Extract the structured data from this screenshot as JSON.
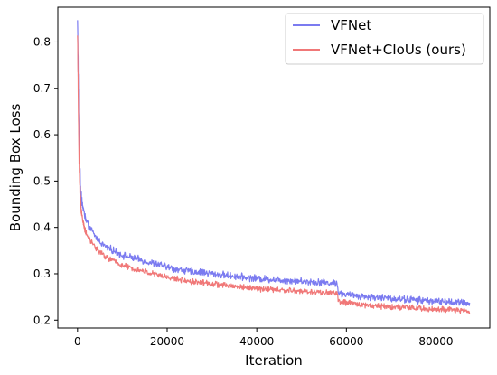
{
  "chart_data": {
    "type": "line",
    "xlabel": "Iteration",
    "ylabel": "Bounding Box Loss",
    "xlim": [
      -4400,
      92000
    ],
    "ylim": [
      0.183,
      0.875
    ],
    "x_ticks": [
      0,
      20000,
      40000,
      60000,
      80000
    ],
    "x_tick_labels": [
      "0",
      "20000",
      "40000",
      "60000",
      "80000"
    ],
    "y_ticks": [
      0.2,
      0.3,
      0.4,
      0.5,
      0.6,
      0.7,
      0.8
    ],
    "y_tick_labels": [
      "0.2",
      "0.3",
      "0.4",
      "0.5",
      "0.6",
      "0.7",
      "0.8"
    ],
    "grid": false,
    "legend_position": "top-right",
    "series": [
      {
        "name": "VFNet",
        "color": "#7b7bf0",
        "x": [
          0,
          100,
          200,
          300,
          400,
          500,
          600,
          800,
          1000,
          1500,
          2000,
          3000,
          4000,
          5000,
          6000,
          8000,
          10000,
          12000,
          14000,
          16000,
          18000,
          20000,
          22000,
          25000,
          28000,
          30000,
          35000,
          40000,
          45000,
          50000,
          52000,
          54000,
          56000,
          58000,
          58200,
          60000,
          62000,
          65000,
          70000,
          75000,
          80000,
          85000,
          87500
        ],
        "y": [
          0.845,
          0.78,
          0.7,
          0.62,
          0.56,
          0.52,
          0.5,
          0.47,
          0.455,
          0.43,
          0.41,
          0.395,
          0.38,
          0.37,
          0.36,
          0.35,
          0.34,
          0.335,
          0.33,
          0.325,
          0.32,
          0.315,
          0.31,
          0.305,
          0.303,
          0.3,
          0.295,
          0.29,
          0.287,
          0.284,
          0.283,
          0.282,
          0.28,
          0.28,
          0.258,
          0.255,
          0.253,
          0.25,
          0.247,
          0.244,
          0.241,
          0.238,
          0.236
        ],
        "noise": 0.006
      },
      {
        "name": "VFNet+CIoUs (ours)",
        "color": "#f07878",
        "x": [
          0,
          100,
          200,
          300,
          400,
          500,
          600,
          800,
          1000,
          1500,
          2000,
          3000,
          4000,
          5000,
          6000,
          8000,
          10000,
          12000,
          14000,
          16000,
          18000,
          20000,
          22000,
          25000,
          28000,
          30000,
          35000,
          40000,
          45000,
          50000,
          52000,
          54000,
          56000,
          58000,
          58200,
          60000,
          62000,
          65000,
          70000,
          75000,
          80000,
          85000,
          87500
        ],
        "y": [
          0.82,
          0.74,
          0.65,
          0.58,
          0.53,
          0.49,
          0.47,
          0.44,
          0.425,
          0.4,
          0.385,
          0.37,
          0.357,
          0.347,
          0.338,
          0.328,
          0.318,
          0.312,
          0.307,
          0.302,
          0.297,
          0.293,
          0.289,
          0.284,
          0.281,
          0.278,
          0.273,
          0.268,
          0.265,
          0.262,
          0.261,
          0.26,
          0.259,
          0.259,
          0.24,
          0.237,
          0.235,
          0.232,
          0.229,
          0.226,
          0.223,
          0.221,
          0.219
        ],
        "noise": 0.005
      }
    ]
  }
}
